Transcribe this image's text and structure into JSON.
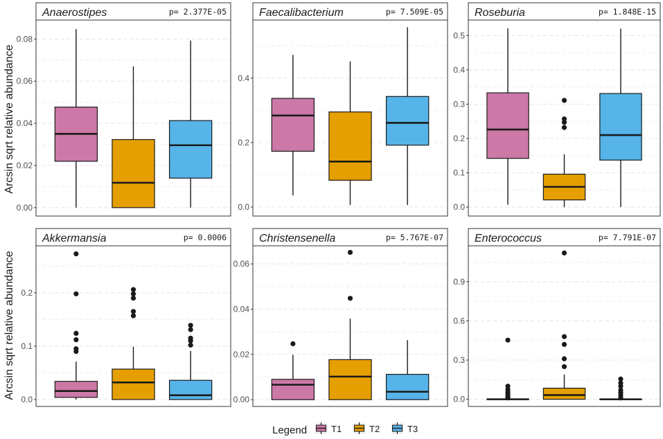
{
  "chart_data": {
    "type": "box",
    "ylabel": "Arcsin sqrt relative abundance",
    "legend": {
      "title": "Legend",
      "placement": "bottom",
      "groups": [
        {
          "name": "T1",
          "color": "#cc79a7"
        },
        {
          "name": "T2",
          "color": "#e69f00"
        },
        {
          "name": "T3",
          "color": "#56b4e9"
        }
      ]
    },
    "panels": [
      {
        "title": "Anaerostipes",
        "p_label": "p= 2.377E-05",
        "ylim": [
          -0.004,
          0.089
        ],
        "ticks": [
          0.0,
          0.02,
          0.04,
          0.06,
          0.08
        ],
        "tick_labels": [
          "0.00",
          "0.02",
          "0.04",
          "0.06",
          "0.08"
        ],
        "boxes": [
          {
            "group": "T1",
            "min": 0.0,
            "q1": 0.022,
            "median": 0.035,
            "q3": 0.0477,
            "max": 0.0847,
            "outliers": []
          },
          {
            "group": "T2",
            "min": 0.0,
            "q1": 0.0,
            "median": 0.0118,
            "q3": 0.0323,
            "max": 0.067,
            "outliers": []
          },
          {
            "group": "T3",
            "min": 0.0,
            "q1": 0.014,
            "median": 0.0296,
            "q3": 0.0413,
            "max": 0.0793,
            "outliers": []
          }
        ]
      },
      {
        "title": "Faecalibacterium",
        "p_label": "p= 7.509E-05",
        "ylim": [
          -0.028,
          0.58
        ],
        "ticks": [
          0.0,
          0.2,
          0.4
        ],
        "tick_labels": [
          "0.0",
          "0.2",
          "0.4"
        ],
        "boxes": [
          {
            "group": "T1",
            "min": 0.036,
            "q1": 0.173,
            "median": 0.284,
            "q3": 0.337,
            "max": 0.472,
            "outliers": []
          },
          {
            "group": "T2",
            "min": 0.006,
            "q1": 0.083,
            "median": 0.141,
            "q3": 0.295,
            "max": 0.452,
            "outliers": []
          },
          {
            "group": "T3",
            "min": 0.006,
            "q1": 0.192,
            "median": 0.261,
            "q3": 0.343,
            "max": 0.558,
            "outliers": []
          }
        ]
      },
      {
        "title": "Roseburia",
        "p_label": "p= 1.848E-15",
        "ylim": [
          -0.026,
          0.545
        ],
        "ticks": [
          0.0,
          0.1,
          0.2,
          0.3,
          0.4,
          0.5
        ],
        "tick_labels": [
          "0.0",
          "0.1",
          "0.2",
          "0.3",
          "0.4",
          "0.5"
        ],
        "boxes": [
          {
            "group": "T1",
            "min": 0.007,
            "q1": 0.142,
            "median": 0.226,
            "q3": 0.333,
            "max": 0.521,
            "outliers": []
          },
          {
            "group": "T2",
            "min": 0.0,
            "q1": 0.021,
            "median": 0.059,
            "q3": 0.096,
            "max": 0.154,
            "outliers": [
              0.232,
              0.247,
              0.257,
              0.311
            ]
          },
          {
            "group": "T3",
            "min": 0.0,
            "q1": 0.137,
            "median": 0.21,
            "q3": 0.331,
            "max": 0.52,
            "outliers": []
          }
        ]
      },
      {
        "title": "Akkermansia",
        "p_label": "p= 0.0006",
        "ylim": [
          -0.013,
          0.288
        ],
        "ticks": [
          0.0,
          0.1,
          0.2
        ],
        "tick_labels": [
          "0.0",
          "0.1",
          "0.2"
        ],
        "boxes": [
          {
            "group": "T1",
            "min": 0.0,
            "q1": 0.004,
            "median": 0.016,
            "q3": 0.034,
            "max": 0.071,
            "outliers": [
              0.09,
              0.095,
              0.112,
              0.124,
              0.198,
              0.273
            ]
          },
          {
            "group": "T2",
            "min": 0.0,
            "q1": 0.0,
            "median": 0.032,
            "q3": 0.057,
            "max": 0.099,
            "outliers": [
              0.157,
              0.165,
              0.19,
              0.198,
              0.206
            ]
          },
          {
            "group": "T3",
            "min": 0.0,
            "q1": 0.0,
            "median": 0.008,
            "q3": 0.036,
            "max": 0.091,
            "outliers": [
              0.102,
              0.11,
              0.115,
              0.131,
              0.139
            ]
          }
        ]
      },
      {
        "title": "Christensenella",
        "p_label": "p= 5.767E-07",
        "ylim": [
          -0.003,
          0.068
        ],
        "ticks": [
          0.0,
          0.02,
          0.04,
          0.06
        ],
        "tick_labels": [
          "0.00",
          "0.02",
          "0.04",
          "0.06"
        ],
        "boxes": [
          {
            "group": "T1",
            "min": 0.0,
            "q1": 0.0,
            "median": 0.0066,
            "q3": 0.009,
            "max": 0.0198,
            "outliers": [
              0.0247
            ]
          },
          {
            "group": "T2",
            "min": 0.0,
            "q1": 0.0,
            "median": 0.0102,
            "q3": 0.0177,
            "max": 0.0358,
            "outliers": [
              0.0448,
              0.0651
            ]
          },
          {
            "group": "T3",
            "min": 0.0,
            "q1": 0.0,
            "median": 0.0035,
            "q3": 0.0112,
            "max": 0.0263,
            "outliers": []
          }
        ]
      },
      {
        "title": "Enterococcus",
        "p_label": "p= 7.791E-07",
        "ylim": [
          -0.055,
          1.175
        ],
        "ticks": [
          0.0,
          0.3,
          0.6,
          0.9
        ],
        "tick_labels": [
          "0.0",
          "0.3",
          "0.6",
          "0.9"
        ],
        "boxes": [
          {
            "group": "T1",
            "min": 0.0,
            "q1": 0.0,
            "median": 0.0,
            "q3": 0.003,
            "max": 0.008,
            "outliers": [
              0.01,
              0.025,
              0.04,
              0.055,
              0.075,
              0.1,
              0.453
            ]
          },
          {
            "group": "T2",
            "min": 0.0,
            "q1": 0.0,
            "median": 0.032,
            "q3": 0.085,
            "max": 0.19,
            "outliers": [
              0.25,
              0.31,
              0.42,
              0.48,
              1.12
            ]
          },
          {
            "group": "T3",
            "min": 0.0,
            "q1": 0.0,
            "median": 0.0,
            "q3": 0.002,
            "max": 0.006,
            "outliers": [
              0.01,
              0.03,
              0.05,
              0.07,
              0.1,
              0.125,
              0.155
            ]
          }
        ]
      }
    ]
  }
}
